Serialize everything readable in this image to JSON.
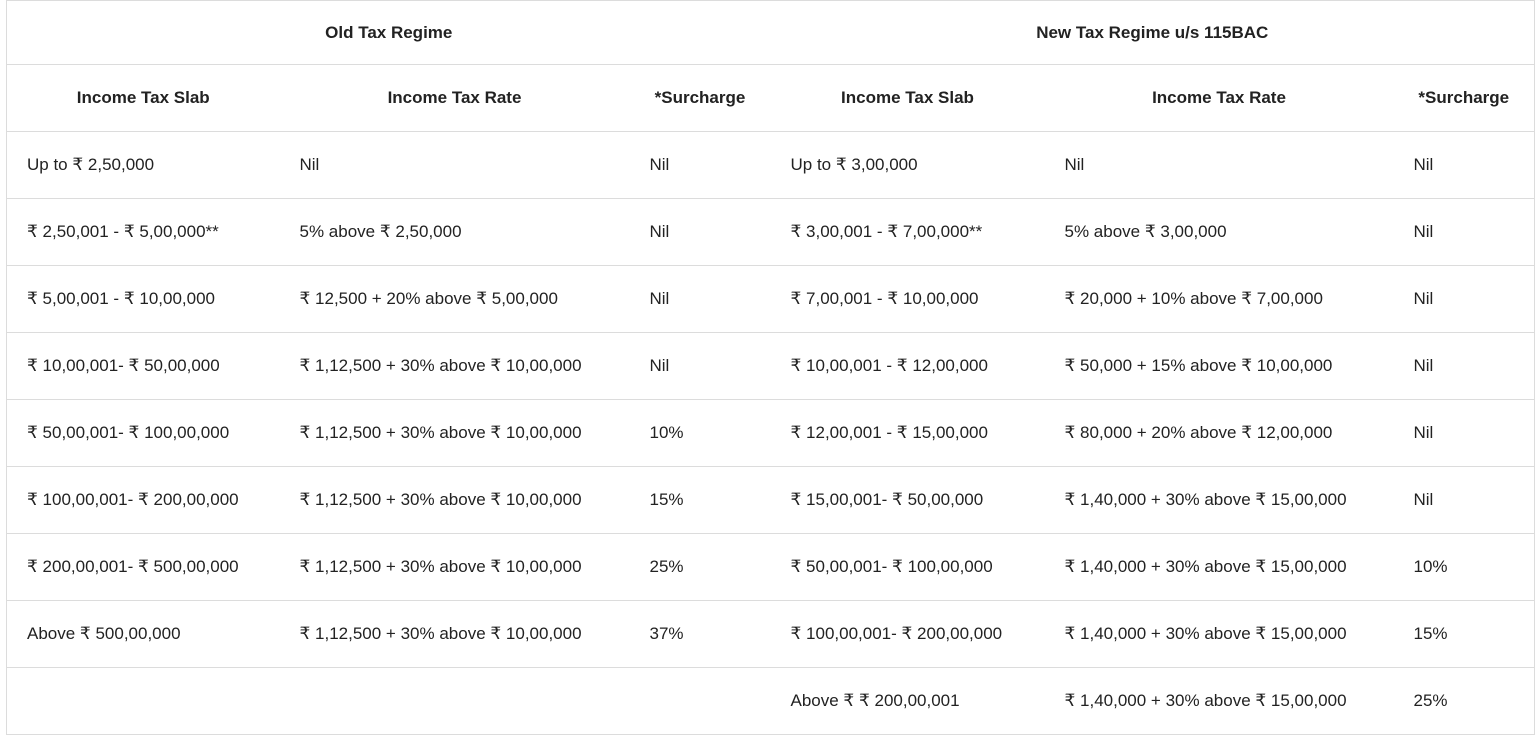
{
  "regimes": {
    "old": "Old Tax Regime",
    "new": "New Tax Regime u/s 115BAC"
  },
  "columns": {
    "slab": "Income Tax Slab",
    "rate": "Income Tax Rate",
    "surcharge": "*Surcharge"
  },
  "rows": [
    {
      "old_slab": "Up to ₹ 2,50,000",
      "old_rate": "Nil",
      "old_surcharge": "Nil",
      "new_slab": "Up to ₹ 3,00,000",
      "new_rate": "Nil",
      "new_surcharge": "Nil"
    },
    {
      "old_slab": "₹ 2,50,001 - ₹ 5,00,000**",
      "old_rate": "5% above ₹ 2,50,000",
      "old_surcharge": "Nil",
      "new_slab": "₹ 3,00,001 - ₹ 7,00,000**",
      "new_rate": "5% above ₹ 3,00,000",
      "new_surcharge": "Nil"
    },
    {
      "old_slab": "₹ 5,00,001 - ₹ 10,00,000",
      "old_rate": "₹ 12,500 + 20% above ₹ 5,00,000",
      "old_surcharge": "Nil",
      "new_slab": "₹ 7,00,001 - ₹ 10,00,000",
      "new_rate": "₹ 20,000 + 10% above ₹ 7,00,000",
      "new_surcharge": "Nil"
    },
    {
      "old_slab": "₹ 10,00,001- ₹ 50,00,000",
      "old_rate": "₹ 1,12,500 + 30% above ₹ 10,00,000",
      "old_surcharge": "Nil",
      "new_slab": "₹ 10,00,001 - ₹ 12,00,000",
      "new_rate": "₹ 50,000 + 15% above ₹ 10,00,000",
      "new_surcharge": "Nil"
    },
    {
      "old_slab": "₹ 50,00,001- ₹ 100,00,000",
      "old_rate": "₹ 1,12,500 + 30% above ₹ 10,00,000",
      "old_surcharge": "10%",
      "new_slab": "₹ 12,00,001 - ₹ 15,00,000",
      "new_rate": "₹ 80,000 + 20% above ₹ 12,00,000",
      "new_surcharge": "Nil"
    },
    {
      "old_slab": "₹ 100,00,001- ₹ 200,00,000",
      "old_rate": "₹ 1,12,500 + 30% above ₹ 10,00,000",
      "old_surcharge": "15%",
      "new_slab": "₹ 15,00,001- ₹ 50,00,000",
      "new_rate": "₹ 1,40,000 + 30% above ₹ 15,00,000",
      "new_surcharge": "Nil"
    },
    {
      "old_slab": "₹ 200,00,001- ₹ 500,00,000",
      "old_rate": "₹ 1,12,500 + 30% above ₹ 10,00,000",
      "old_surcharge": "25%",
      "new_slab": "₹ 50,00,001- ₹ 100,00,000",
      "new_rate": "₹ 1,40,000 + 30% above ₹ 15,00,000",
      "new_surcharge": "10%"
    },
    {
      "old_slab": "Above ₹ 500,00,000",
      "old_rate": "₹ 1,12,500 + 30% above ₹ 10,00,000",
      "old_surcharge": "37%",
      "new_slab": "₹ 100,00,001- ₹ 200,00,000",
      "new_rate": "₹ 1,40,000 + 30% above ₹ 15,00,000",
      "new_surcharge": "15%"
    },
    {
      "old_slab": "",
      "old_rate": "",
      "old_surcharge": "",
      "new_slab": "Above ₹ ₹ 200,00,001",
      "new_rate": "₹ 1,40,000 + 30% above ₹ 15,00,000",
      "new_surcharge": "25%"
    }
  ]
}
